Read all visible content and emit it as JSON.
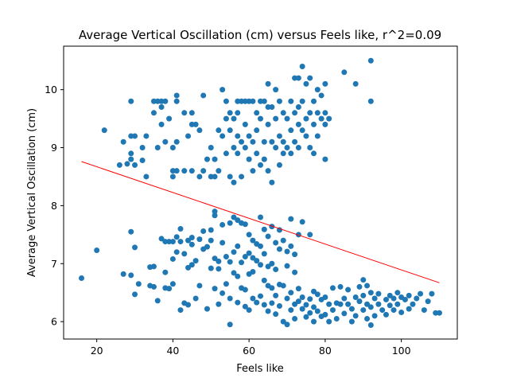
{
  "chart_data": {
    "type": "scatter",
    "title": "Average Vertical Oscillation (cm) versus Feels like, r^2=0.09",
    "xlabel": "Feels like",
    "ylabel": "Average Vertical Oscillation (cm)",
    "xlim": [
      11.3,
      114.7
    ],
    "ylim": [
      5.7,
      10.75
    ],
    "xticks": [
      20,
      40,
      60,
      80,
      100
    ],
    "yticks": [
      6,
      7,
      8,
      9,
      10
    ],
    "grid": false,
    "colors": {
      "points": "#1f77b4",
      "fit_line": "#ff0000"
    },
    "fit_line": {
      "x": [
        16,
        110
      ],
      "y": [
        8.76,
        6.67
      ]
    },
    "points": [
      [
        16,
        6.75
      ],
      [
        20,
        7.23
      ],
      [
        22,
        9.3
      ],
      [
        26,
        8.7
      ],
      [
        27,
        9.1
      ],
      [
        27,
        6.82
      ],
      [
        28,
        8.72
      ],
      [
        29,
        9.8
      ],
      [
        29,
        8.9
      ],
      [
        29,
        8.8
      ],
      [
        29,
        9.2
      ],
      [
        29,
        7.55
      ],
      [
        29,
        6.8
      ],
      [
        30,
        9.2
      ],
      [
        30,
        8.7
      ],
      [
        30,
        7.28
      ],
      [
        30,
        6.47
      ],
      [
        31,
        6.65
      ],
      [
        32,
        9.0
      ],
      [
        32,
        8.78
      ],
      [
        33,
        8.5
      ],
      [
        33,
        9.2
      ],
      [
        34,
        6.62
      ],
      [
        34,
        6.94
      ],
      [
        35,
        6.6
      ],
      [
        35,
        9.8
      ],
      [
        35,
        6.95
      ],
      [
        35,
        9.6
      ],
      [
        36,
        9.0
      ],
      [
        36,
        9.8
      ],
      [
        36,
        6.36
      ],
      [
        37,
        9.8
      ],
      [
        37,
        9.7
      ],
      [
        37,
        9.4
      ],
      [
        37,
        7.43
      ],
      [
        38,
        9.8
      ],
      [
        38,
        9.1
      ],
      [
        38,
        7.38
      ],
      [
        38,
        6.85
      ],
      [
        38,
        6.58
      ],
      [
        39,
        9.5
      ],
      [
        39,
        7.38
      ],
      [
        39,
        6.57
      ],
      [
        40,
        9.0
      ],
      [
        40,
        8.6
      ],
      [
        40,
        8.5
      ],
      [
        40,
        7.38
      ],
      [
        40,
        7.08
      ],
      [
        40,
        6.65
      ],
      [
        41,
        9.8
      ],
      [
        41,
        9.9
      ],
      [
        41,
        9.1
      ],
      [
        41,
        8.6
      ],
      [
        41,
        7.2
      ],
      [
        41,
        7.46
      ],
      [
        42,
        6.2
      ],
      [
        42,
        7.6
      ],
      [
        42,
        7.38
      ],
      [
        43,
        8.6
      ],
      [
        43,
        9.6
      ],
      [
        43,
        6.32
      ],
      [
        43,
        7.17
      ],
      [
        44,
        9.2
      ],
      [
        44,
        6.93
      ],
      [
        44,
        7.4
      ],
      [
        44,
        6.29
      ],
      [
        45,
        9.6
      ],
      [
        45,
        9.4
      ],
      [
        45,
        8.6
      ],
      [
        45,
        7.45
      ],
      [
        45,
        7.33
      ],
      [
        45,
        6.98
      ],
      [
        46,
        9.4
      ],
      [
        46,
        6.4
      ],
      [
        46,
        7.05
      ],
      [
        47,
        9.3
      ],
      [
        47,
        8.5
      ],
      [
        47,
        7.42
      ],
      [
        47,
        6.62
      ],
      [
        48,
        9.9
      ],
      [
        48,
        8.6
      ],
      [
        48,
        7.56
      ],
      [
        48,
        7.25
      ],
      [
        49,
        8.8
      ],
      [
        49,
        7.29
      ],
      [
        49,
        6.22
      ],
      [
        50,
        8.5
      ],
      [
        50,
        9.0
      ],
      [
        50,
        7.58
      ],
      [
        50,
        6.92
      ],
      [
        50,
        7.4
      ],
      [
        51,
        8.8
      ],
      [
        51,
        8.5
      ],
      [
        51,
        7.9
      ],
      [
        51,
        7.83
      ],
      [
        51,
        7.09
      ],
      [
        51,
        6.57
      ],
      [
        52,
        9.3
      ],
      [
        52,
        7.04
      ],
      [
        52,
        8.6
      ],
      [
        52,
        6.3
      ],
      [
        52,
        6.91
      ],
      [
        53,
        10.0
      ],
      [
        53,
        9.2
      ],
      [
        53,
        7.67
      ],
      [
        53,
        7.36
      ],
      [
        53,
        6.49
      ],
      [
        54,
        9.8
      ],
      [
        54,
        9.5
      ],
      [
        54,
        8.9
      ],
      [
        54,
        7.12
      ],
      [
        54,
        6.65
      ],
      [
        55,
        9.6
      ],
      [
        55,
        9.3
      ],
      [
        55,
        8.5
      ],
      [
        55,
        7.7
      ],
      [
        55,
        7.03
      ],
      [
        55,
        6.4
      ],
      [
        55,
        5.95
      ],
      [
        56,
        9.5
      ],
      [
        56,
        9.0
      ],
      [
        56,
        8.4
      ],
      [
        56,
        7.8
      ],
      [
        56,
        7.2
      ],
      [
        56,
        6.84
      ],
      [
        57,
        9.8
      ],
      [
        57,
        9.6
      ],
      [
        57,
        9.2
      ],
      [
        57,
        8.9
      ],
      [
        57,
        7.75
      ],
      [
        57,
        7.3
      ],
      [
        57,
        6.78
      ],
      [
        57,
        6.33
      ],
      [
        58,
        9.8
      ],
      [
        58,
        9.1
      ],
      [
        58,
        8.5
      ],
      [
        58,
        7.7
      ],
      [
        58,
        7.02
      ],
      [
        58,
        6.58
      ],
      [
        59,
        9.8
      ],
      [
        59,
        9.4
      ],
      [
        59,
        9.0
      ],
      [
        59,
        7.68
      ],
      [
        59,
        7.12
      ],
      [
        59,
        6.55
      ],
      [
        59,
        6.26
      ],
      [
        60,
        9.8
      ],
      [
        60,
        9.2
      ],
      [
        60,
        8.8
      ],
      [
        60,
        7.5
      ],
      [
        60,
        7.18
      ],
      [
        60,
        6.82
      ],
      [
        60,
        6.2
      ],
      [
        61,
        9.8
      ],
      [
        61,
        9.1
      ],
      [
        61,
        8.6
      ],
      [
        61,
        7.4
      ],
      [
        61,
        7.1
      ],
      [
        61,
        6.86
      ],
      [
        61,
        6.4
      ],
      [
        62,
        9.6
      ],
      [
        62,
        9.3
      ],
      [
        62,
        8.9
      ],
      [
        62,
        7.34
      ],
      [
        62,
        7.05
      ],
      [
        62,
        6.33
      ],
      [
        63,
        9.8
      ],
      [
        63,
        9.5
      ],
      [
        63,
        8.7
      ],
      [
        63,
        7.8
      ],
      [
        63,
        7.3
      ],
      [
        63,
        6.98
      ],
      [
        63,
        6.44
      ],
      [
        64,
        9.8
      ],
      [
        64,
        9.1
      ],
      [
        64,
        8.8
      ],
      [
        64,
        7.59
      ],
      [
        64,
        7.17
      ],
      [
        64,
        6.71
      ],
      [
        64,
        6.29
      ],
      [
        65,
        10.1
      ],
      [
        65,
        9.7
      ],
      [
        65,
        9.4
      ],
      [
        65,
        8.6
      ],
      [
        65,
        7.47
      ],
      [
        65,
        6.95
      ],
      [
        65,
        6.62
      ],
      [
        65,
        6.18
      ],
      [
        66,
        9.7
      ],
      [
        66,
        9.1
      ],
      [
        66,
        8.4
      ],
      [
        66,
        7.64
      ],
      [
        66,
        7.0
      ],
      [
        66,
        6.58
      ],
      [
        66,
        6.32
      ],
      [
        67,
        10.0
      ],
      [
        67,
        9.5
      ],
      [
        67,
        9.0
      ],
      [
        67,
        7.36
      ],
      [
        67,
        6.9
      ],
      [
        67,
        6.45
      ],
      [
        67,
        6.13
      ],
      [
        68,
        9.8
      ],
      [
        68,
        9.2
      ],
      [
        68,
        8.7
      ],
      [
        68,
        7.58
      ],
      [
        68,
        7.25
      ],
      [
        68,
        6.64
      ],
      [
        68,
        6.27
      ],
      [
        69,
        9.6
      ],
      [
        69,
        9.1
      ],
      [
        69,
        8.9
      ],
      [
        69,
        7.4
      ],
      [
        69,
        6.62
      ],
      [
        69,
        6.0
      ],
      [
        70,
        9.5
      ],
      [
        70,
        9.0
      ],
      [
        70,
        7.21
      ],
      [
        70,
        6.96
      ],
      [
        70,
        6.4
      ],
      [
        70,
        5.95
      ],
      [
        71,
        9.8
      ],
      [
        71,
        9.3
      ],
      [
        71,
        8.9
      ],
      [
        71,
        7.77
      ],
      [
        71,
        7.3
      ],
      [
        71,
        6.5
      ],
      [
        71,
        6.2
      ],
      [
        72,
        10.2
      ],
      [
        72,
        9.6
      ],
      [
        72,
        9.1
      ],
      [
        72,
        7.16
      ],
      [
        72,
        6.85
      ],
      [
        72,
        6.3
      ],
      [
        72,
        6.05
      ],
      [
        73,
        10.2
      ],
      [
        73,
        9.7
      ],
      [
        73,
        9.4
      ],
      [
        73,
        9.0
      ],
      [
        73,
        7.5
      ],
      [
        73,
        6.57
      ],
      [
        73,
        6.35
      ],
      [
        74,
        10.4
      ],
      [
        74,
        9.8
      ],
      [
        74,
        9.3
      ],
      [
        74,
        7.72
      ],
      [
        74,
        6.22
      ],
      [
        74,
        6.42
      ],
      [
        75,
        10.1
      ],
      [
        75,
        9.5
      ],
      [
        75,
        9.2
      ],
      [
        75,
        6.29
      ],
      [
        75,
        6.08
      ],
      [
        76,
        10.2
      ],
      [
        76,
        9.6
      ],
      [
        76,
        9.0
      ],
      [
        76,
        7.5
      ],
      [
        76,
        6.39
      ],
      [
        76,
        6.15
      ],
      [
        77,
        9.8
      ],
      [
        77,
        9.4
      ],
      [
        77,
        8.9
      ],
      [
        77,
        6.52
      ],
      [
        77,
        6.25
      ],
      [
        77,
        6.0
      ],
      [
        78,
        10.0
      ],
      [
        78,
        9.6
      ],
      [
        78,
        9.2
      ],
      [
        78,
        6.47
      ],
      [
        78,
        6.18
      ],
      [
        79,
        9.9
      ],
      [
        79,
        9.5
      ],
      [
        79,
        6.38
      ],
      [
        79,
        6.09
      ],
      [
        80,
        10.1
      ],
      [
        80,
        9.6
      ],
      [
        80,
        9.4
      ],
      [
        80,
        8.8
      ],
      [
        80,
        6.42
      ],
      [
        80,
        6.12
      ],
      [
        81,
        9.5
      ],
      [
        81,
        6.3
      ],
      [
        81,
        6.0
      ],
      [
        82,
        6.2
      ],
      [
        82,
        6.58
      ],
      [
        83,
        6.32
      ],
      [
        83,
        6.05
      ],
      [
        84,
        6.3
      ],
      [
        84,
        6.6
      ],
      [
        85,
        10.3
      ],
      [
        85,
        6.14
      ],
      [
        85,
        6.4
      ],
      [
        86,
        6.55
      ],
      [
        86,
        6.3
      ],
      [
        87,
        6.22
      ],
      [
        87,
        6.0
      ],
      [
        88,
        10.1
      ],
      [
        88,
        6.42
      ],
      [
        88,
        6.1
      ],
      [
        89,
        6.35
      ],
      [
        89,
        6.6
      ],
      [
        90,
        6.2
      ],
      [
        90,
        6.45
      ],
      [
        90,
        6.72
      ],
      [
        91,
        6.3
      ],
      [
        91,
        6.62
      ],
      [
        91,
        6.05
      ],
      [
        92,
        10.5
      ],
      [
        92,
        9.8
      ],
      [
        92,
        6.5
      ],
      [
        92,
        6.25
      ],
      [
        92,
        5.94
      ],
      [
        93,
        6.4
      ],
      [
        93,
        6.1
      ],
      [
        94,
        6.3
      ],
      [
        94,
        6.48
      ],
      [
        95,
        6.2
      ],
      [
        96,
        6.38
      ],
      [
        96,
        6.12
      ],
      [
        97,
        6.28
      ],
      [
        97,
        6.45
      ],
      [
        98,
        6.4
      ],
      [
        98,
        6.2
      ],
      [
        99,
        6.5
      ],
      [
        99,
        6.3
      ],
      [
        100,
        6.42
      ],
      [
        100,
        6.16
      ],
      [
        101,
        6.38
      ],
      [
        102,
        6.45
      ],
      [
        102,
        6.22
      ],
      [
        103,
        6.3
      ],
      [
        104,
        6.4
      ],
      [
        105,
        6.48
      ],
      [
        106,
        6.2
      ],
      [
        107,
        6.35
      ],
      [
        108,
        6.48
      ],
      [
        109,
        6.15
      ],
      [
        110,
        6.15
      ]
    ]
  }
}
